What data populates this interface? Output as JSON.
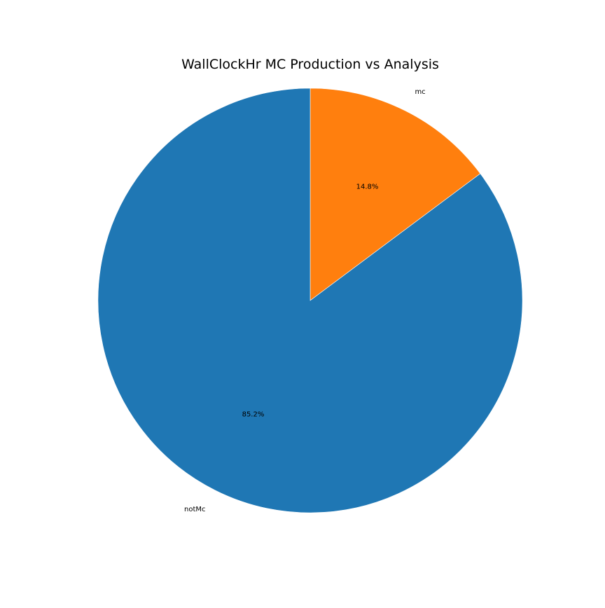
{
  "chart_data": {
    "type": "pie",
    "title": "WallClockHr MC Production vs Analysis",
    "slices": [
      {
        "label": "mc",
        "percent_label": "14.8%",
        "value": 14.8,
        "color": "#ff7f0e"
      },
      {
        "label": "notMc",
        "percent_label": "85.2%",
        "value": 85.2,
        "color": "#1f77b4"
      }
    ],
    "start_angle_deg": 90,
    "direction": "counterclockwise-from-mc-slice-end",
    "legend": "none"
  }
}
